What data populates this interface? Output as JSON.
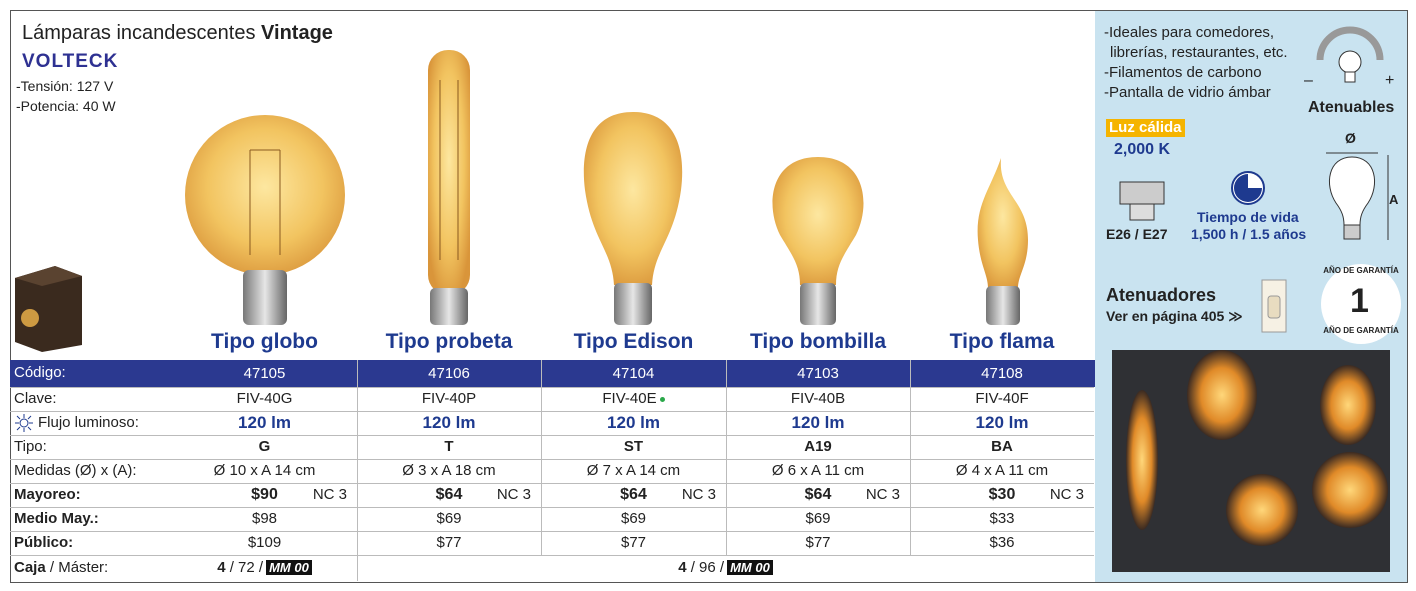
{
  "header": {
    "title_main": "Lámparas incandescentes",
    "title_bold": "Vintage",
    "brand": "VOLTECK",
    "specs": [
      "-Tensión: 127 V",
      "-Potencia: 40 W"
    ]
  },
  "products": [
    {
      "type_name": "Tipo globo",
      "code": "47105",
      "clave": "FIV-40G",
      "flux": "120 lm",
      "shape": "G",
      "dims": "Ø 10 x A 14 cm",
      "mayoreo": "$90",
      "nc": "NC 3",
      "medio": "$98",
      "publico": "$109"
    },
    {
      "type_name": "Tipo probeta",
      "code": "47106",
      "clave": "FIV-40P",
      "flux": "120 lm",
      "shape": "T",
      "dims": "Ø 3 x A 18 cm",
      "mayoreo": "$64",
      "nc": "NC 3",
      "medio": "$69",
      "publico": "$77"
    },
    {
      "type_name": "Tipo Edison",
      "code": "47104",
      "clave": "FIV-40E",
      "flux": "120 lm",
      "shape": "ST",
      "dims": "Ø 7 x A 14 cm",
      "mayoreo": "$64",
      "nc": "NC 3",
      "medio": "$69",
      "publico": "$77"
    },
    {
      "type_name": "Tipo bombilla",
      "code": "47103",
      "clave": "FIV-40B",
      "flux": "120 lm",
      "shape": "A19",
      "dims": "Ø 6 x A 11 cm",
      "mayoreo": "$64",
      "nc": "NC 3",
      "medio": "$69",
      "publico": "$77"
    },
    {
      "type_name": "Tipo flama",
      "code": "47108",
      "clave": "FIV-40F",
      "flux": "120 lm",
      "shape": "BA",
      "dims": "Ø 4 x A 11 cm",
      "mayoreo": "$30",
      "nc": "NC 3",
      "medio": "$33",
      "publico": "$36"
    }
  ],
  "table": {
    "row_labels": [
      "Código:",
      "Clave:",
      "Flujo luminoso:",
      "Tipo:",
      "Medidas (Ø) x (A):",
      "Mayoreo:",
      "Medio May.:",
      "Público:"
    ],
    "caja_label_bold": "Caja",
    "caja_label_rest": "/ Máster:",
    "caja_groups": [
      {
        "inner": "4",
        "master": "/ 72 /",
        "badge": "MM 00"
      },
      {
        "inner": "4",
        "master": "/ 96 /",
        "badge": "MM 00"
      }
    ]
  },
  "side": {
    "features": [
      "-Ideales para comedores,",
      "librerías, restaurantes, etc.",
      "-Filamentos de carbono",
      "-Pantalla de vidrio ámbar"
    ],
    "dimmable": "Atenuables",
    "minus": "–",
    "plus": "+",
    "warm_label": "Luz cálida",
    "warm_value": "2,000 K",
    "socket": "E26 / E27",
    "life_label": "Tiempo de vida",
    "life_value": "1,500 h / 1.5 años",
    "dim_diameter": "Ø",
    "dim_height": "A",
    "dimmers_title": "Atenuadores",
    "dimmers_link": "Ver en página 405 ≫",
    "warranty_number": "1",
    "warranty_text_top": "AÑO DE GARANTÍA",
    "warranty_text_bottom": "AÑO DE GARANTÍA"
  }
}
